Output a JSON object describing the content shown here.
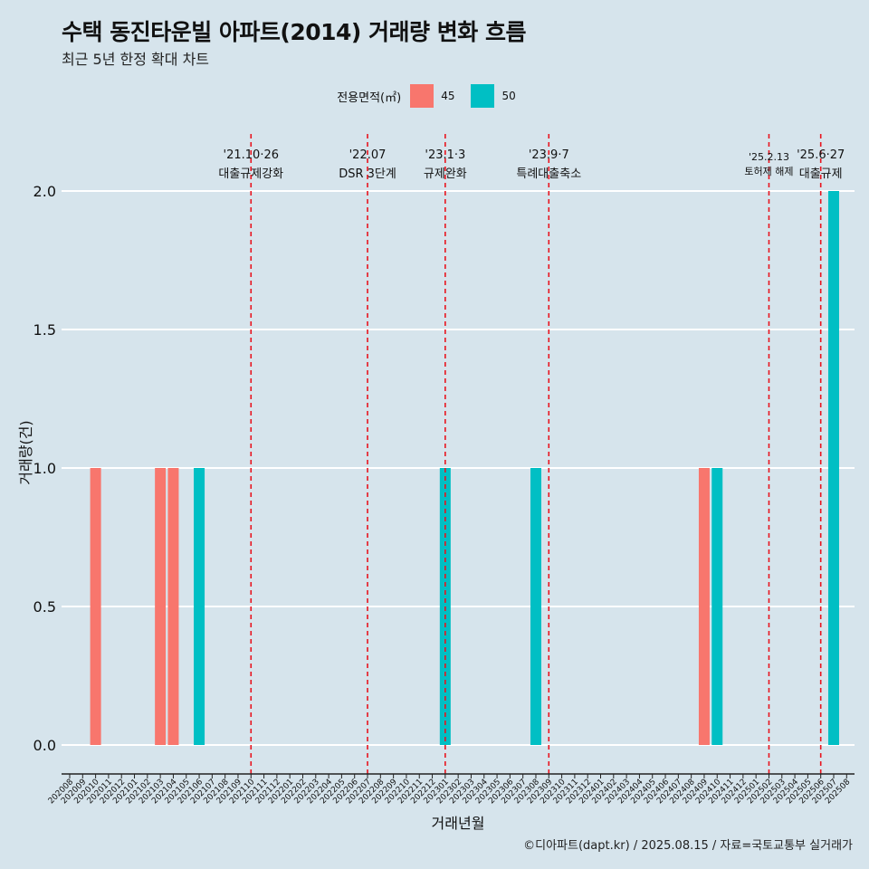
{
  "header": {
    "title": "수택 동진타운빌 아파트(2014) 거래량 변화 흐름",
    "subtitle": "최근 5년 한정 확대 차트"
  },
  "legend": {
    "title": "전용면적(㎡)",
    "items": [
      {
        "label": "45",
        "color": "#f8766d"
      },
      {
        "label": "50",
        "color": "#00bfc4"
      }
    ]
  },
  "caption": "©디아파트(dapt.kr) / 2025.08.15 / 자료=국토교통부 실거래가",
  "chart_data": {
    "type": "bar",
    "title": "수택 동진타운빌 아파트(2014) 거래량 변화 흐름",
    "subtitle": "최근 5년 한정 확대 차트",
    "xlabel": "거래년월",
    "ylabel": "거래량(건)",
    "ylim": [
      -0.08,
      2.2
    ],
    "yticks": [
      "0.0",
      "0.5",
      "1.0",
      "1.5",
      "2.0"
    ],
    "categories": [
      "202008",
      "202009",
      "202010",
      "202011",
      "202012",
      "202101",
      "202102",
      "202103",
      "202104",
      "202105",
      "202106",
      "202107",
      "202108",
      "202109",
      "202110",
      "202111",
      "202112",
      "202201",
      "202202",
      "202203",
      "202204",
      "202205",
      "202206",
      "202207",
      "202208",
      "202209",
      "202210",
      "202211",
      "202212",
      "202301",
      "202302",
      "202303",
      "202304",
      "202305",
      "202306",
      "202307",
      "202308",
      "202309",
      "202310",
      "202311",
      "202312",
      "202401",
      "202402",
      "202403",
      "202404",
      "202405",
      "202406",
      "202407",
      "202408",
      "202409",
      "202410",
      "202411",
      "202412",
      "202501",
      "202502",
      "202503",
      "202504",
      "202505",
      "202506",
      "202507",
      "202508"
    ],
    "series": [
      {
        "name": "45",
        "color": "#f8766d",
        "points": [
          [
            "202010",
            1
          ],
          [
            "202103",
            1
          ],
          [
            "202104",
            1
          ],
          [
            "202409",
            1
          ]
        ]
      },
      {
        "name": "50",
        "color": "#00bfc4",
        "points": [
          [
            "202106",
            1
          ],
          [
            "202301",
            1
          ],
          [
            "202308",
            1
          ],
          [
            "202410",
            1
          ],
          [
            "202507",
            2
          ]
        ]
      }
    ],
    "events": [
      {
        "month": "202110",
        "label1": "'21.10·26",
        "label2": "대출규제강화"
      },
      {
        "month": "202207",
        "label1": "'22.07",
        "label2": "DSR 3단계"
      },
      {
        "month": "202301",
        "label1": "'23.1·3",
        "label2": "규제완화"
      },
      {
        "month": "202309",
        "label1": "'23.9·7",
        "label2": "특례대출축소"
      },
      {
        "month": "202502",
        "label1": "'25.2.13",
        "label2": "토허제 해제"
      },
      {
        "month": "202506",
        "label1": "'25.6·27",
        "label2": "대출규제"
      }
    ],
    "grid": true,
    "legend_position": "top"
  }
}
